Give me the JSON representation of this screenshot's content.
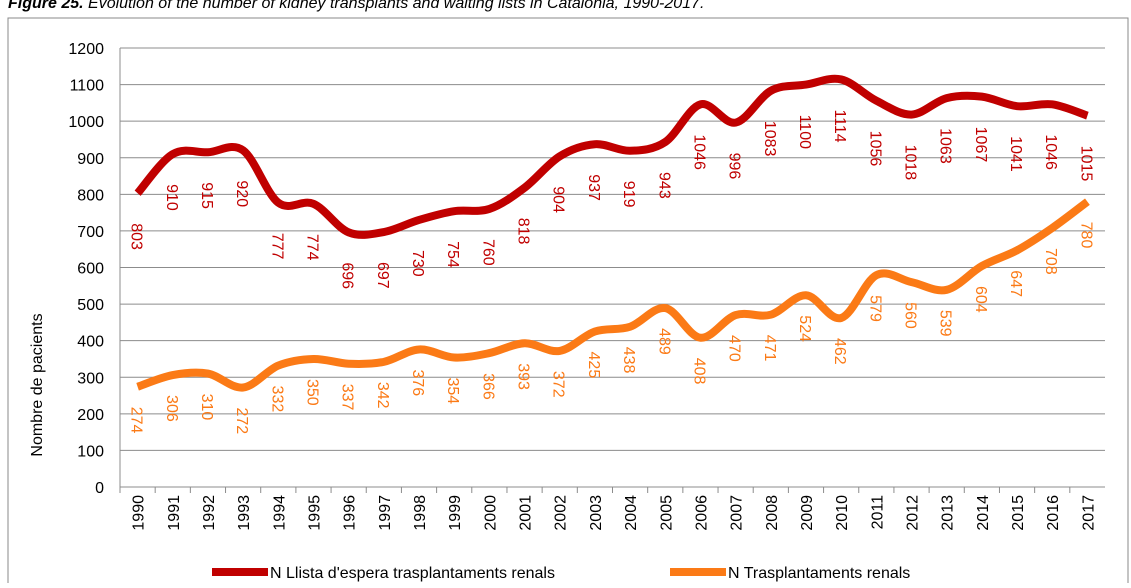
{
  "chart_data": {
    "type": "line",
    "title": {
      "label": "Figure 25.",
      "text": " Evolution of the number of kidney transplants and waiting lists in Catalonia, 1990-2017."
    },
    "ylabel": "Nombre de pacients",
    "categories": [
      "1990",
      "1991",
      "1992",
      "1993",
      "1994",
      "1995",
      "1996",
      "1997",
      "1998",
      "1999",
      "2000",
      "2001",
      "2002",
      "2003",
      "2004",
      "2005",
      "2006",
      "2007",
      "2008",
      "2009",
      "2010",
      "2011",
      "2012",
      "2013",
      "2014",
      "2015",
      "2016",
      "2017"
    ],
    "series": [
      {
        "name": "N Llista d'espera trasplantaments renals",
        "color": "#c00000",
        "values": [
          803,
          910,
          915,
          920,
          777,
          774,
          696,
          697,
          730,
          754,
          760,
          818,
          904,
          937,
          919,
          943,
          1046,
          996,
          1083,
          1100,
          1114,
          1056,
          1018,
          1063,
          1067,
          1041,
          1046,
          1015
        ]
      },
      {
        "name": "N Trasplantaments renals",
        "color": "#fb7a16",
        "values": [
          274,
          306,
          310,
          272,
          332,
          350,
          337,
          342,
          376,
          354,
          366,
          393,
          372,
          425,
          438,
          489,
          408,
          470,
          471,
          524,
          462,
          579,
          560,
          539,
          604,
          647,
          708,
          780
        ]
      }
    ],
    "ylim": [
      0,
      1200
    ],
    "yticks": [
      0,
      100,
      200,
      300,
      400,
      500,
      600,
      700,
      800,
      900,
      1000,
      1100,
      1200
    ],
    "grid": true,
    "legend": "bottom"
  }
}
